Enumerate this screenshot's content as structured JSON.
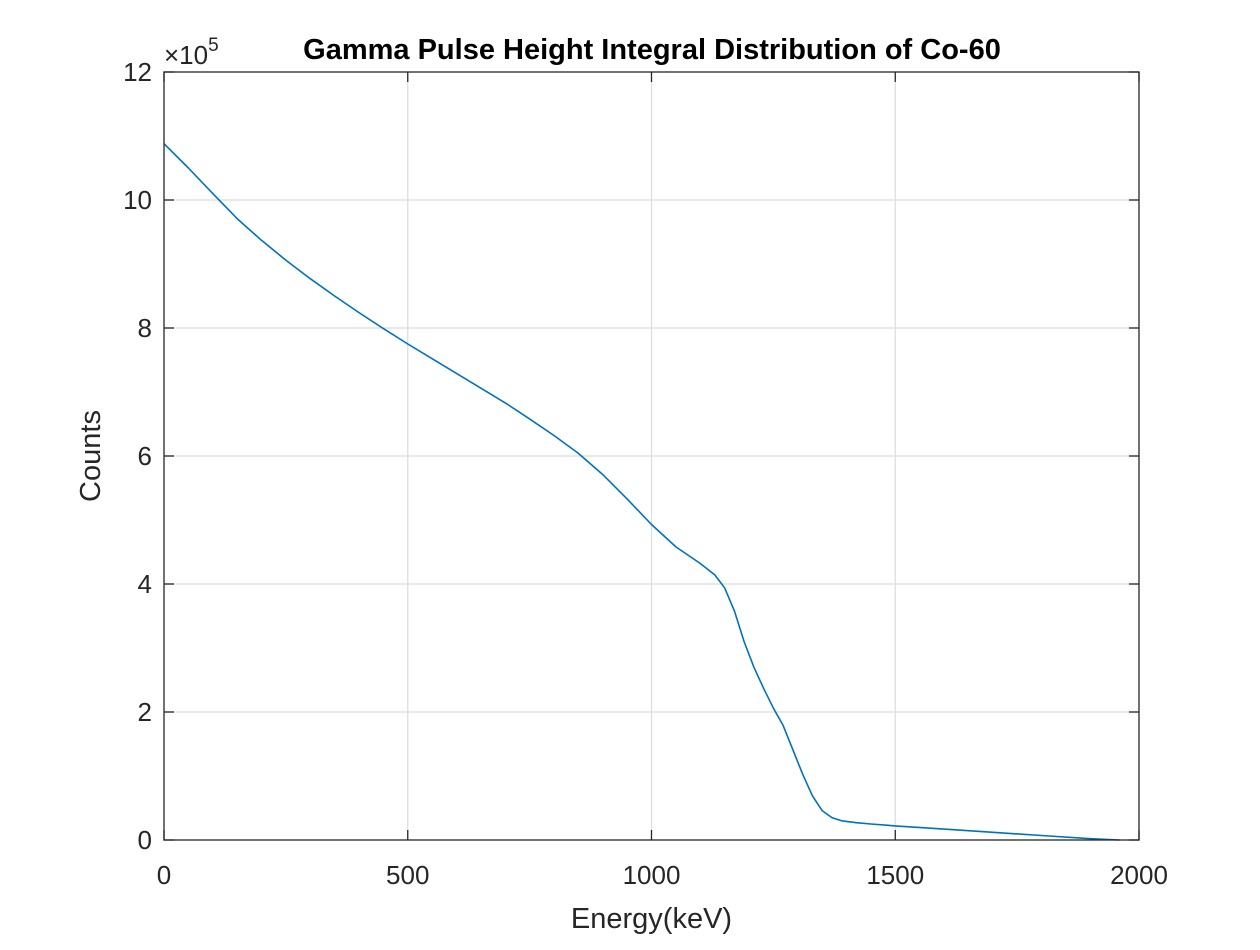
{
  "chart_data": {
    "type": "line",
    "title": "Gamma Pulse Height Integral Distribution of Co-60",
    "xlabel": "Energy(keV)",
    "ylabel": "Counts",
    "xlim": [
      0,
      2000
    ],
    "ylim": [
      0,
      1200000
    ],
    "y_exponent_label": {
      "base": "×10",
      "exponent": "5"
    },
    "x_ticks": [
      0,
      500,
      1000,
      1500,
      2000
    ],
    "x_tick_labels": [
      "0",
      "500",
      "1000",
      "1500",
      "2000"
    ],
    "y_ticks": [
      0,
      200000,
      400000,
      600000,
      800000,
      1000000,
      1200000
    ],
    "y_tick_labels": [
      "0",
      "2",
      "4",
      "6",
      "8",
      "10",
      "12"
    ],
    "grid": true,
    "box": true,
    "series": [
      {
        "color": "#0072BD",
        "x": [
          0,
          50,
          100,
          150,
          200,
          250,
          300,
          350,
          400,
          450,
          500,
          550,
          600,
          650,
          700,
          750,
          800,
          850,
          900,
          950,
          1000,
          1050,
          1100,
          1130,
          1150,
          1170,
          1190,
          1210,
          1230,
          1250,
          1270,
          1290,
          1310,
          1330,
          1350,
          1370,
          1390,
          1420,
          1450,
          1500,
          1600,
          1700,
          1800,
          1900,
          1960
        ],
        "y": [
          1088000,
          1050000,
          1010000,
          971000,
          937000,
          906000,
          877000,
          850000,
          824000,
          799000,
          775000,
          752000,
          729000,
          706000,
          683000,
          658000,
          632000,
          604000,
          571000,
          533000,
          493000,
          458000,
          432000,
          414000,
          394000,
          358000,
          310000,
          270000,
          237000,
          206000,
          179000,
          141000,
          103000,
          69000,
          46000,
          35000,
          30000,
          27000,
          25000,
          22000,
          17000,
          12000,
          7000,
          2000,
          0
        ]
      }
    ]
  }
}
